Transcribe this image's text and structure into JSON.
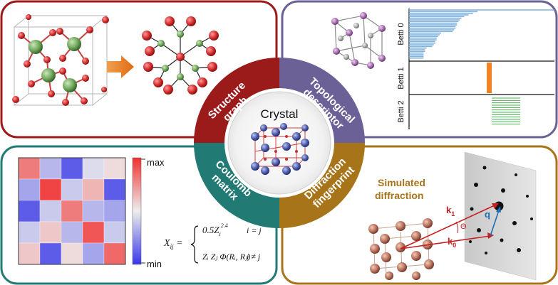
{
  "center": {
    "label": "Crystal"
  },
  "quadrants": {
    "structure_graph": {
      "line1": "Structure",
      "line2": "graph"
    },
    "topological_descriptor": {
      "line1": "Topological",
      "line2": "descriptor"
    },
    "coulomb_matrix": {
      "line1": "Coulomb",
      "line2": "matrix"
    },
    "diffraction_fingerprint": {
      "line1": "Diffraction",
      "line2": "fingerprint"
    }
  },
  "barcode": {
    "labels": [
      "Betti 0",
      "Betti 1",
      "Betti 2"
    ],
    "betti0_bar_lengths": [
      1.0,
      0.47,
      0.44,
      0.41,
      0.38,
      0.36,
      0.35,
      0.34,
      0.33,
      0.33,
      0.32,
      0.32,
      0.31,
      0.3,
      0.22,
      0.21,
      0.2,
      0.19,
      0.19,
      0.18,
      0.18,
      0.17,
      0.16,
      0.12,
      0.11,
      0.11,
      0.1,
      0.1,
      0.1,
      0.1
    ],
    "betti1_bar_count": 1,
    "betti2_bar_count": 12,
    "colors": {
      "betti0": "#7fb2dc",
      "betti1": "#f58220",
      "betti2": "#4caf50"
    }
  },
  "coulomb": {
    "colorbar_max": "max",
    "colorbar_min": "min",
    "matrix": [
      [
        0.8,
        0.35,
        0.1,
        0.45,
        0.55
      ],
      [
        0.3,
        0.95,
        0.4,
        0.65,
        0.1
      ],
      [
        0.1,
        0.4,
        0.8,
        0.35,
        0.3
      ],
      [
        0.4,
        0.6,
        0.35,
        0.9,
        0.4
      ],
      [
        0.6,
        0.1,
        0.55,
        0.3,
        0.85
      ]
    ],
    "formula": {
      "lhs": "X",
      "lhs_sub": "ij",
      "case1_expr": "0.5Z",
      "case1_sub": "i",
      "case1_sup": "2.4",
      "case1_cond": "i = j",
      "case2_expr": "Zᵢ Zⱼ Φ(Rᵢ, Rⱼ)",
      "case2_cond": "i ≠ j"
    }
  },
  "diffraction": {
    "title_line1": "Simulated",
    "title_line2": "diffraction",
    "label_k1": "k",
    "label_k1_sub": "1",
    "label_k0": "k",
    "label_k0_sub": "0",
    "label_q": "q",
    "label_theta": "Θ"
  },
  "colors": {
    "structure": "#9b1b1b",
    "topological": "#6b6196",
    "coulomb": "#217a74",
    "diffraction": "#a8741a"
  }
}
